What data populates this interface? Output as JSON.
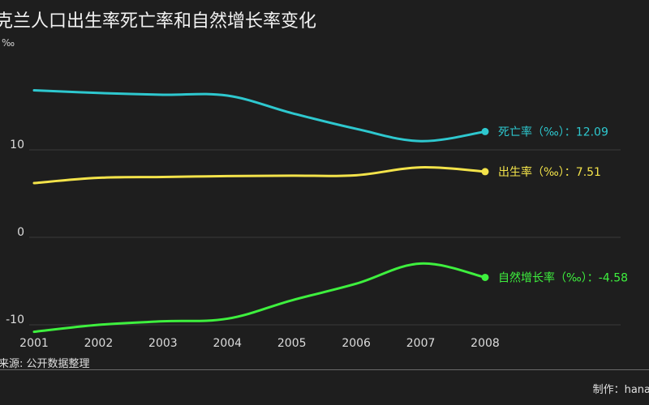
{
  "title": "克兰人口出生率死亡率和自然增长率变化",
  "unit": "‰",
  "source": "来源: 公开数据整理",
  "credit": "制作：hana",
  "colors": {
    "background": "#1e1e1e",
    "grid": "#3a3a3a",
    "death": "#2ec8cf",
    "birth": "#f3e34a",
    "natural": "#3ef03e"
  },
  "chart_data": {
    "type": "line",
    "x": [
      2001,
      2002,
      2003,
      2004,
      2005,
      2006,
      2007,
      2008
    ],
    "xtick_labels": [
      "2001",
      "2002",
      "2003",
      "2004",
      "2005",
      "2006",
      "2007",
      "2008"
    ],
    "yticks": [
      10,
      0,
      -10
    ],
    "ytick_labels": [
      "10",
      "0",
      "-10"
    ],
    "ylim": [
      -11,
      20
    ],
    "grid": true,
    "series": [
      {
        "name": "死亡率（‰）",
        "key": "death",
        "values": [
          16.8,
          16.5,
          16.3,
          16.2,
          14.2,
          12.4,
          11.0,
          12.09
        ],
        "end_label": "死亡率（‰）：12.09"
      },
      {
        "name": "出生率（‰）",
        "key": "birth",
        "values": [
          6.2,
          6.8,
          6.9,
          7.0,
          7.05,
          7.1,
          8.0,
          7.51
        ],
        "end_label": "出生率（‰）：7.51"
      },
      {
        "name": "自然增长率（‰）",
        "key": "natural",
        "values": [
          -10.8,
          -10.0,
          -9.6,
          -9.3,
          -7.2,
          -5.3,
          -3.0,
          -4.58
        ],
        "end_label": "自然增长率（‰）：-4.58"
      }
    ]
  }
}
